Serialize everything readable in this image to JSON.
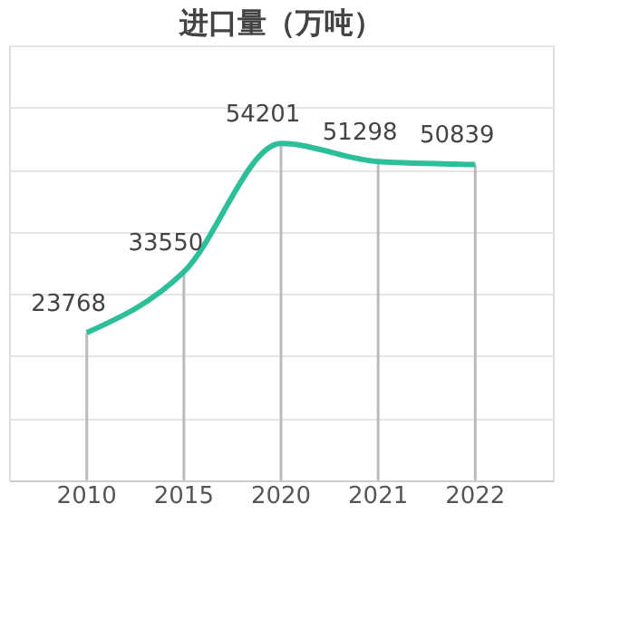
{
  "chart_data": {
    "type": "line",
    "title": "进口量（万吨）",
    "categories": [
      "2010",
      "2015",
      "2020",
      "2021",
      "2022"
    ],
    "series": [
      {
        "color": "#2dbf9a",
        "values": [
          23768,
          33550,
          54201,
          51298,
          50839
        ]
      }
    ],
    "ylim": [
      0,
      70000
    ],
    "yticks": [
      0,
      10000,
      20000,
      30000,
      40000,
      50000,
      60000,
      70000
    ],
    "grid": true,
    "tick_labels": "x",
    "data_labels": true,
    "marker": "none",
    "line_style": "solid"
  }
}
